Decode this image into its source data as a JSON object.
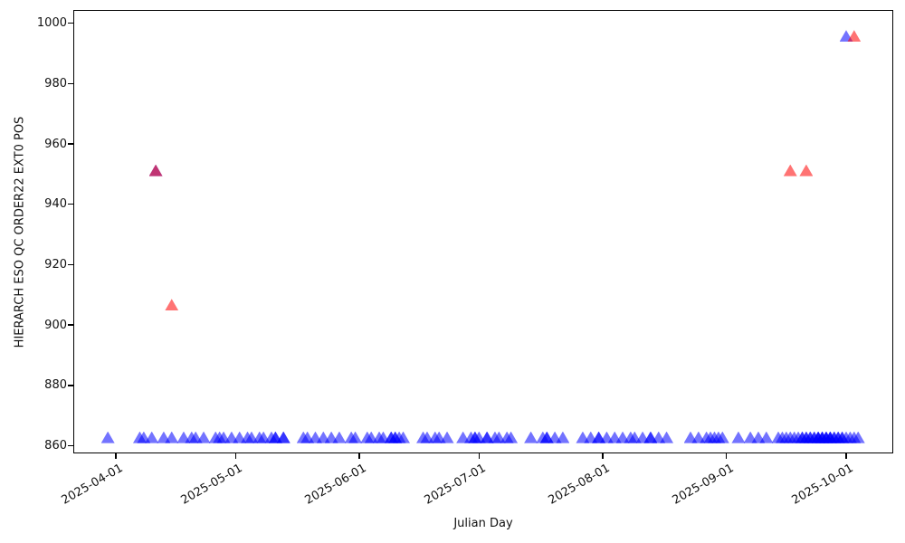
{
  "figure": {
    "xlabel": "Julian Day",
    "ylabel": "HIERARCH ESO QC ORDER22 EXT0 POS"
  },
  "chart_data": {
    "type": "scatter",
    "title": "",
    "xlabel": "Julian Day",
    "ylabel": "HIERARCH ESO QC ORDER22 EXT0 POS",
    "marker": "triangle-up",
    "alpha": 0.55,
    "grid": false,
    "legend": "none",
    "x_tick_labels": [
      "2025-04-01",
      "2025-05-01",
      "2025-06-01",
      "2025-07-01",
      "2025-08-01",
      "2025-09-01",
      "2025-10-01"
    ],
    "y_ticks": [
      860,
      880,
      900,
      920,
      940,
      960,
      980,
      1000
    ],
    "x_range": [
      "2025-03-21",
      "2025-10-13"
    ],
    "y_range": [
      857.0,
      1004.5
    ],
    "series": [
      {
        "name": "blue-series",
        "color_rgb": "0,0,255",
        "hex": "#0000ff",
        "band_value": 862.8,
        "band_dates": [
          "2025-03-30",
          "2025-04-07",
          "2025-04-08",
          "2025-04-10",
          "2025-04-13",
          "2025-04-15",
          "2025-04-18",
          "2025-04-20",
          "2025-04-21",
          "2025-04-23",
          "2025-04-26",
          "2025-04-27",
          "2025-04-28",
          "2025-04-30",
          "2025-05-02",
          "2025-05-04",
          "2025-05-05",
          "2025-05-07",
          "2025-05-08",
          "2025-05-10",
          "2025-05-11",
          "2025-05-11",
          "2025-05-13",
          "2025-05-13",
          "2025-05-18",
          "2025-05-19",
          "2025-05-21",
          "2025-05-23",
          "2025-05-25",
          "2025-05-27",
          "2025-05-30",
          "2025-05-31",
          "2025-06-03",
          "2025-06-04",
          "2025-06-06",
          "2025-06-07",
          "2025-06-09",
          "2025-06-09",
          "2025-06-10",
          "2025-06-10",
          "2025-06-11",
          "2025-06-12",
          "2025-06-17",
          "2025-06-18",
          "2025-06-20",
          "2025-06-21",
          "2025-06-23",
          "2025-06-27",
          "2025-06-29",
          "2025-06-30",
          "2025-06-30",
          "2025-07-01",
          "2025-07-03",
          "2025-07-03",
          "2025-07-05",
          "2025-07-06",
          "2025-07-08",
          "2025-07-09",
          "2025-07-14",
          "2025-07-17",
          "2025-07-18",
          "2025-07-18",
          "2025-07-20",
          "2025-07-22",
          "2025-07-27",
          "2025-07-29",
          "2025-07-31",
          "2025-07-31",
          "2025-08-02",
          "2025-08-04",
          "2025-08-06",
          "2025-08-08",
          "2025-08-09",
          "2025-08-11",
          "2025-08-13",
          "2025-08-13",
          "2025-08-15",
          "2025-08-17",
          "2025-08-23",
          "2025-08-25",
          "2025-08-27",
          "2025-08-28",
          "2025-08-29",
          "2025-08-30",
          "2025-08-31",
          "2025-09-04",
          "2025-09-07",
          "2025-09-09",
          "2025-09-11",
          "2025-09-14",
          "2025-09-15",
          "2025-09-16",
          "2025-09-17",
          "2025-09-18",
          "2025-09-19",
          "2025-09-20",
          "2025-09-20",
          "2025-09-21",
          "2025-09-21",
          "2025-09-22",
          "2025-09-22",
          "2025-09-23",
          "2025-09-23",
          "2025-09-24",
          "2025-09-24",
          "2025-09-24",
          "2025-09-25",
          "2025-09-25",
          "2025-09-25",
          "2025-09-26",
          "2025-09-26",
          "2025-09-26",
          "2025-09-27",
          "2025-09-27",
          "2025-09-27",
          "2025-09-28",
          "2025-09-28",
          "2025-09-29",
          "2025-09-29",
          "2025-09-30",
          "2025-09-30",
          "2025-10-01",
          "2025-10-02",
          "2025-10-03",
          "2025-10-04"
        ],
        "extra_points": [
          [
            "2025-04-11",
            951.3
          ],
          [
            "2025-10-01",
            995.8
          ]
        ]
      },
      {
        "name": "red-series",
        "color_rgb": "255,0,0",
        "hex": "#ff0000",
        "points": [
          [
            "2025-04-11",
            951.3
          ],
          [
            "2025-04-15",
            906.7
          ],
          [
            "2025-09-17",
            951.3
          ],
          [
            "2025-09-21",
            951.3
          ],
          [
            "2025-10-03",
            995.8
          ]
        ]
      }
    ]
  }
}
